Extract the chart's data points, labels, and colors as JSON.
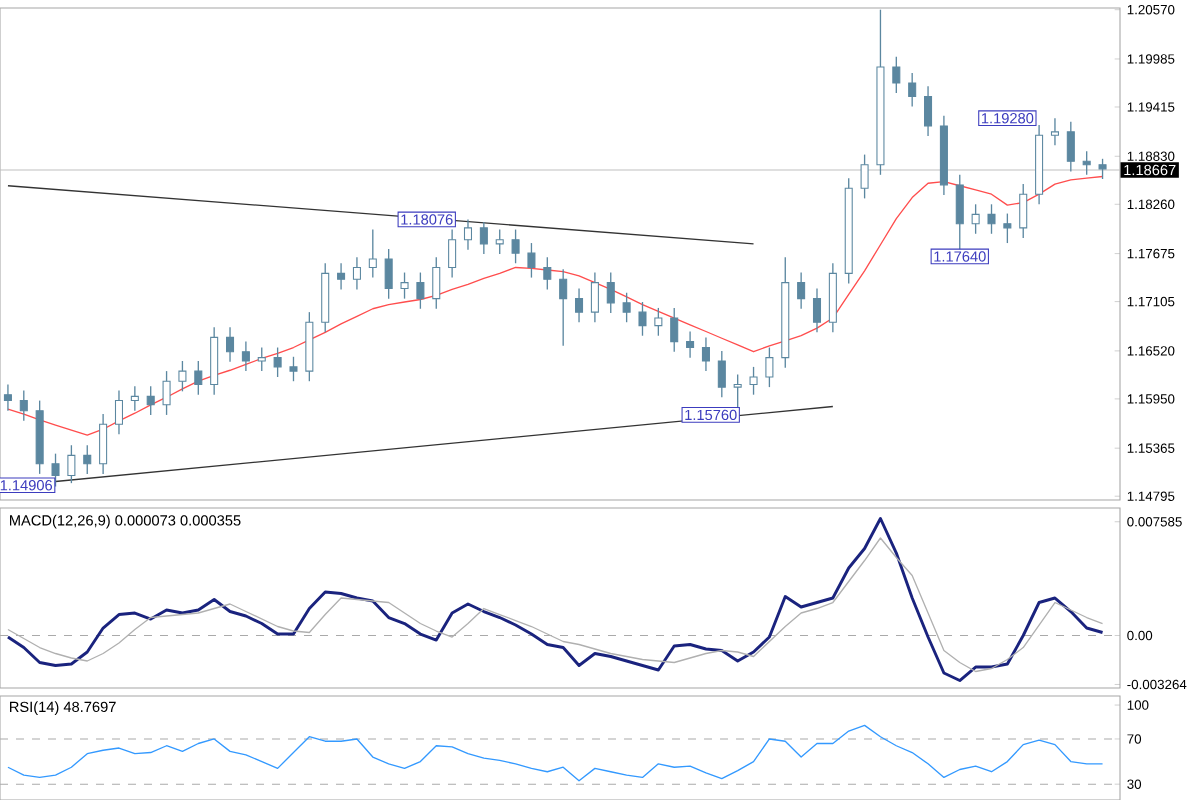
{
  "chart_data": [
    {
      "type": "candlestick",
      "color": "#5b87a0",
      "tick_labels": "y",
      "categories": [
        null,
        null,
        null,
        null,
        null,
        null,
        null,
        null,
        null,
        null,
        null,
        null,
        null,
        null,
        null,
        null,
        null,
        null,
        null,
        null,
        null,
        null,
        null,
        null,
        null,
        null,
        null,
        null,
        null,
        null,
        null,
        null,
        null,
        null,
        null,
        null,
        null,
        null,
        null,
        null,
        null,
        null,
        null,
        null,
        null,
        null,
        null,
        null,
        null,
        null,
        null,
        null,
        null,
        null,
        null,
        null,
        null,
        null,
        null,
        null,
        null,
        null,
        null,
        null,
        null,
        null,
        null,
        null,
        null,
        null
      ],
      "ohlc": [
        [
          1.16,
          1.1612,
          1.1581,
          1.1593
        ],
        [
          1.1593,
          1.1605,
          1.1569,
          1.1581
        ],
        [
          1.1581,
          1.1593,
          1.1506,
          1.1518
        ],
        [
          1.1518,
          1.153,
          1.1491,
          1.1504
        ],
        [
          1.1504,
          1.154,
          1.1495,
          1.1528
        ],
        [
          1.1528,
          1.154,
          1.1506,
          1.1518
        ],
        [
          1.1518,
          1.1577,
          1.1506,
          1.1565
        ],
        [
          1.1565,
          1.1605,
          1.1553,
          1.1593
        ],
        [
          1.1593,
          1.161,
          1.1581,
          1.1598
        ],
        [
          1.1598,
          1.161,
          1.1576,
          1.1588
        ],
        [
          1.1588,
          1.1628,
          1.1576,
          1.1616
        ],
        [
          1.1616,
          1.164,
          1.1604,
          1.1628
        ],
        [
          1.1628,
          1.164,
          1.16,
          1.1612
        ],
        [
          1.1612,
          1.168,
          1.16,
          1.1668
        ],
        [
          1.1668,
          1.168,
          1.1639,
          1.1651
        ],
        [
          1.1651,
          1.1663,
          1.1628,
          1.164
        ],
        [
          1.164,
          1.1656,
          1.1628,
          1.1644
        ],
        [
          1.1644,
          1.1656,
          1.1621,
          1.1633
        ],
        [
          1.1633,
          1.1645,
          1.1616,
          1.1628
        ],
        [
          1.1628,
          1.1698,
          1.1616,
          1.1686
        ],
        [
          1.1686,
          1.1756,
          1.1674,
          1.1744
        ],
        [
          1.1744,
          1.1756,
          1.1725,
          1.1737
        ],
        [
          1.1737,
          1.1763,
          1.1725,
          1.1751
        ],
        [
          1.1751,
          1.1796,
          1.1739,
          1.1761
        ],
        [
          1.1761,
          1.1773,
          1.1714,
          1.1726
        ],
        [
          1.1726,
          1.1745,
          1.1714,
          1.1733
        ],
        [
          1.1733,
          1.1745,
          1.1702,
          1.1714
        ],
        [
          1.1714,
          1.1763,
          1.1702,
          1.1751
        ],
        [
          1.1751,
          1.1796,
          1.1739,
          1.1784
        ],
        [
          1.1784,
          1.1808,
          1.1772,
          1.1798
        ],
        [
          1.1798,
          1.1805,
          1.1767,
          1.1779
        ],
        [
          1.1779,
          1.1796,
          1.1767,
          1.1784
        ],
        [
          1.1784,
          1.1796,
          1.1756,
          1.1768
        ],
        [
          1.1768,
          1.178,
          1.1739,
          1.1751
        ],
        [
          1.1751,
          1.1763,
          1.1725,
          1.1737
        ],
        [
          1.1737,
          1.1749,
          1.1658,
          1.1714
        ],
        [
          1.1714,
          1.1726,
          1.1686,
          1.1698
        ],
        [
          1.1698,
          1.1745,
          1.1686,
          1.1733
        ],
        [
          1.1733,
          1.1745,
          1.1697,
          1.1709
        ],
        [
          1.1709,
          1.1721,
          1.1686,
          1.1698
        ],
        [
          1.1698,
          1.171,
          1.167,
          1.1682
        ],
        [
          1.1682,
          1.1703,
          1.167,
          1.1691
        ],
        [
          1.1691,
          1.1703,
          1.1651,
          1.1663
        ],
        [
          1.1663,
          1.1675,
          1.1644,
          1.1656
        ],
        [
          1.1656,
          1.1668,
          1.1628,
          1.164
        ],
        [
          1.164,
          1.1652,
          1.1597,
          1.1609
        ],
        [
          1.1609,
          1.1624,
          1.1576,
          1.1612
        ],
        [
          1.1612,
          1.1633,
          1.16,
          1.1621
        ],
        [
          1.1621,
          1.1656,
          1.1609,
          1.1644
        ],
        [
          1.1644,
          1.1763,
          1.1632,
          1.1733
        ],
        [
          1.1733,
          1.1745,
          1.1702,
          1.1714
        ],
        [
          1.1714,
          1.1726,
          1.1674,
          1.1686
        ],
        [
          1.1686,
          1.1756,
          1.1674,
          1.1744
        ],
        [
          1.1744,
          1.1857,
          1.1732,
          1.1845
        ],
        [
          1.1845,
          1.1885,
          1.1833,
          1.1873
        ],
        [
          1.1873,
          1.2057,
          1.1861,
          1.1989
        ],
        [
          1.1989,
          1.2001,
          1.1958,
          1.197
        ],
        [
          1.197,
          1.1982,
          1.1942,
          1.1954
        ],
        [
          1.1954,
          1.1966,
          1.1907,
          1.1919
        ],
        [
          1.1919,
          1.1931,
          1.1837,
          1.1849
        ],
        [
          1.1849,
          1.1861,
          1.1764,
          1.1803
        ],
        [
          1.1803,
          1.1826,
          1.1791,
          1.1814
        ],
        [
          1.1814,
          1.1826,
          1.1791,
          1.1803
        ],
        [
          1.1803,
          1.1815,
          1.178,
          1.1798
        ],
        [
          1.1798,
          1.185,
          1.1786,
          1.1838
        ],
        [
          1.1838,
          1.192,
          1.1826,
          1.1908
        ],
        [
          1.1908,
          1.1928,
          1.1896,
          1.1912
        ],
        [
          1.1912,
          1.1924,
          1.1865,
          1.1877
        ],
        [
          1.1877,
          1.1889,
          1.1861,
          1.1873
        ],
        [
          1.1873,
          1.188,
          1.1856,
          1.1868
        ]
      ],
      "ylim": [
        1.1475,
        1.2059
      ],
      "yticks": [
        {
          "value": 1.14795,
          "label": "1.14795"
        },
        {
          "value": 1.15365,
          "label": "1.15365"
        },
        {
          "value": 1.1595,
          "label": "1.15950"
        },
        {
          "value": 1.1652,
          "label": "1.16520"
        },
        {
          "value": 1.17105,
          "label": "1.17105"
        },
        {
          "value": 1.17675,
          "label": "1.17675"
        },
        {
          "value": 1.1826,
          "label": "1.18260"
        },
        {
          "value": 1.1883,
          "label": "1.18830"
        },
        {
          "value": 1.19415,
          "label": "1.19415"
        },
        {
          "value": 1.19985,
          "label": "1.19985"
        },
        {
          "value": 1.2057,
          "label": "1.20570"
        }
      ],
      "series": [
        {
          "type": "line",
          "color": "#ff4d4d",
          "values": [
            1.1583,
            1.1577,
            1.157,
            1.1564,
            1.1558,
            1.1552,
            1.1559,
            1.1569,
            1.1578,
            1.1588,
            1.1597,
            1.1607,
            1.1616,
            1.1623,
            1.1629,
            1.1636,
            1.1643,
            1.1649,
            1.1656,
            1.1665,
            1.1674,
            1.1684,
            1.1693,
            1.1702,
            1.1707,
            1.171,
            1.1713,
            1.1718,
            1.1725,
            1.1731,
            1.1738,
            1.1744,
            1.1751,
            1.175,
            1.1748,
            1.1746,
            1.1741,
            1.1733,
            1.1725,
            1.1716,
            1.1707,
            1.1699,
            1.1691,
            1.1683,
            1.1675,
            1.1667,
            1.1659,
            1.1651,
            1.1658,
            1.1664,
            1.167,
            1.1679,
            1.1691,
            1.1719,
            1.1747,
            1.1778,
            1.1809,
            1.1834,
            1.1851,
            1.1853,
            1.1848,
            1.1843,
            1.1838,
            1.1825,
            1.1828,
            1.1838,
            1.185,
            1.1855,
            1.1857,
            1.1859
          ]
        },
        {
          "type": "line",
          "color": "#333333",
          "values": [
            1.1848,
            null,
            null,
            null,
            null,
            null,
            null,
            null,
            null,
            null,
            null,
            null,
            null,
            null,
            null,
            null,
            null,
            null,
            null,
            null,
            null,
            null,
            null,
            null,
            null,
            null,
            null,
            null,
            null,
            null,
            null,
            null,
            null,
            null,
            null,
            null,
            null,
            null,
            null,
            null,
            null,
            null,
            null,
            null,
            null,
            null,
            null,
            1.1779,
            null,
            null,
            null,
            null,
            null,
            null,
            null,
            null,
            null,
            null,
            null,
            null,
            null,
            null,
            null,
            null,
            null,
            null,
            null,
            null,
            null,
            null
          ]
        },
        {
          "type": "line",
          "color": "#333333",
          "values": [
            null,
            null,
            null,
            1.1497,
            null,
            null,
            null,
            null,
            null,
            null,
            null,
            null,
            null,
            null,
            null,
            null,
            null,
            null,
            null,
            null,
            null,
            null,
            null,
            null,
            null,
            null,
            null,
            null,
            null,
            null,
            null,
            null,
            null,
            null,
            null,
            null,
            null,
            null,
            null,
            null,
            null,
            null,
            null,
            null,
            null,
            null,
            null,
            null,
            null,
            null,
            null,
            null,
            1.1586,
            null,
            null,
            null,
            null,
            null,
            null,
            null,
            null,
            null,
            null,
            null,
            null,
            null,
            null,
            null,
            null,
            null
          ]
        }
      ],
      "ref_lines": [
        {
          "axis": "y",
          "value": 1.18667,
          "label": "1.18667",
          "color": "#c0c0c0"
        }
      ],
      "annotations": [
        "1.14906",
        {
          "text": "1.18076",
          "y": 1.1808
        },
        {
          "text": "1.15760",
          "y": 1.1576
        },
        "1.17640",
        "1.19280"
      ]
    },
    {
      "type": "line",
      "title": "MACD(12,26,9) 0.000073 0.000355",
      "tick_labels": "y",
      "categories": [
        null,
        null,
        null,
        null,
        null,
        null,
        null,
        null,
        null,
        null,
        null,
        null,
        null,
        null,
        null,
        null,
        null,
        null,
        null,
        null,
        null,
        null,
        null,
        null,
        null,
        null,
        null,
        null,
        null,
        null,
        null,
        null,
        null,
        null,
        null,
        null,
        null,
        null,
        null,
        null,
        null,
        null,
        null,
        null,
        null,
        null,
        null,
        null,
        null,
        null,
        null,
        null,
        null,
        null,
        null,
        null,
        null,
        null,
        null,
        null,
        null,
        null,
        null,
        null,
        null,
        null,
        null,
        null,
        null,
        null
      ],
      "ylim": [
        -0.0035,
        0.0085
      ],
      "yticks": [
        {
          "value": -0.003264,
          "label": "-0.003264"
        },
        {
          "value": 0,
          "label": "0.00"
        },
        {
          "value": 0.007585,
          "label": "0.007585"
        }
      ],
      "series": [
        {
          "color": "#1a237e",
          "values": [
            -0.0001,
            -0.0008,
            -0.0018,
            -0.002,
            -0.0019,
            -0.0011,
            0.0005,
            0.0014,
            0.0015,
            0.0011,
            0.0017,
            0.0015,
            0.0017,
            0.0024,
            0.0016,
            0.0013,
            0.0008,
            0.0001,
            0.0001,
            0.0018,
            0.0029,
            0.0028,
            0.0025,
            0.0023,
            0.0012,
            0.0008,
            0.0001,
            -0.0003,
            0.0015,
            0.0021,
            0.0016,
            0.0012,
            0.0007,
            0.0001,
            -0.0006,
            -0.0008,
            -0.002,
            -0.0012,
            -0.0014,
            -0.0017,
            -0.002,
            -0.0023,
            -0.0007,
            -0.0006,
            -0.0009,
            -0.001,
            -0.0017,
            -0.0011,
            -0.0001,
            0.0026,
            0.0019,
            0.0022,
            0.0025,
            0.0045,
            0.0058,
            0.0078,
            0.0055,
            0.0025,
            -0.0001,
            -0.0025,
            -0.003,
            -0.0021,
            -0.0021,
            -0.0019,
            0.0,
            0.0022,
            0.0025,
            0.0016,
            0.0005,
            0.0002
          ]
        },
        {
          "color": "#b0b0b0",
          "values": [
            0.0004,
            -0.0002,
            -0.0008,
            -0.0012,
            -0.0015,
            -0.0017,
            -0.0012,
            -0.0005,
            0.0004,
            0.0012,
            0.0013,
            0.0014,
            0.0015,
            0.0018,
            0.0021,
            0.0016,
            0.0011,
            0.0006,
            0.0003,
            0.0002,
            0.0014,
            0.0025,
            0.0024,
            0.0023,
            0.0022,
            0.0015,
            0.0008,
            0.0003,
            -0.0001,
            0.0008,
            0.0018,
            0.0014,
            0.001,
            0.0006,
            0.0001,
            -0.0004,
            -0.0006,
            -0.0009,
            -0.0012,
            -0.0014,
            -0.0016,
            -0.0017,
            -0.0018,
            -0.0015,
            -0.0012,
            -0.001,
            -0.0011,
            -0.0014,
            -0.0004,
            0.0006,
            0.0015,
            0.0018,
            0.0022,
            0.0036,
            0.005,
            0.0065,
            0.0052,
            0.004,
            0.0015,
            -0.001,
            -0.0018,
            -0.0024,
            -0.0022,
            -0.0016,
            -0.0008,
            0.0007,
            0.0022,
            0.0017,
            0.0012,
            0.0008
          ]
        }
      ],
      "ref_lines": [
        {
          "axis": "y",
          "value": 0,
          "color": "#aaaaaa",
          "line_style": "dashed"
        }
      ]
    },
    {
      "type": "line",
      "title": "RSI(14) 48.7697",
      "tick_labels": "y",
      "categories": [
        null,
        null,
        null,
        null,
        null,
        null,
        null,
        null,
        null,
        null,
        null,
        null,
        null,
        null,
        null,
        null,
        null,
        null,
        null,
        null,
        null,
        null,
        null,
        null,
        null,
        null,
        null,
        null,
        null,
        null,
        null,
        null,
        null,
        null,
        null,
        null,
        null,
        null,
        null,
        null,
        null,
        null,
        null,
        null,
        null,
        null,
        null,
        null,
        null,
        null,
        null,
        null,
        null,
        null,
        null,
        null,
        null,
        null,
        null,
        null,
        null,
        null,
        null,
        null,
        null,
        null,
        null,
        null,
        null,
        null
      ],
      "ylim": [
        16,
        108
      ],
      "yticks": [
        {
          "value": 30,
          "label": "30"
        },
        {
          "value": 70,
          "label": "70"
        },
        {
          "value": 100,
          "label": "100"
        }
      ],
      "series": [
        {
          "color": "#3399ff",
          "values": [
            45,
            38,
            36,
            38,
            45,
            57,
            60,
            62,
            57,
            58,
            64,
            59,
            66,
            70,
            59,
            56,
            50,
            44,
            58,
            72,
            68,
            68,
            70,
            54,
            48,
            44,
            50,
            64,
            63,
            57,
            53,
            51,
            48,
            44,
            41,
            45,
            33,
            44,
            41,
            38,
            36,
            48,
            45,
            46,
            40,
            35,
            42,
            50,
            70,
            68,
            54,
            66,
            66,
            77,
            82,
            72,
            64,
            58,
            48,
            36,
            43,
            46,
            41,
            50,
            65,
            69,
            65,
            50,
            48,
            48
          ]
        }
      ],
      "ref_lines": [
        {
          "axis": "y",
          "value": 70,
          "color": "#aaaaaa",
          "line_style": "dashed"
        },
        {
          "axis": "y",
          "value": 30,
          "color": "#aaaaaa",
          "line_style": "dashed"
        }
      ]
    }
  ]
}
